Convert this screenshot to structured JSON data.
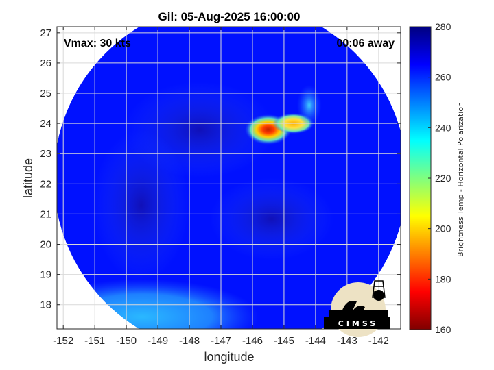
{
  "chart_data": {
    "type": "heatmap",
    "title": "Gil: 05-Aug-2025 16:00:00",
    "xlabel": "longitude",
    "ylabel": "latitude",
    "xlim": [
      -152.2,
      -141.3
    ],
    "ylim": [
      17.2,
      27.2
    ],
    "xticks": [
      -152,
      -151,
      -150,
      -149,
      -148,
      -147,
      -146,
      -145,
      -144,
      -143,
      -142
    ],
    "yticks": [
      18,
      19,
      20,
      21,
      22,
      23,
      24,
      25,
      26,
      27
    ],
    "grid": true,
    "annotations": {
      "vmax": "Vmax: 30 kts",
      "time_offset": "00:06 away"
    },
    "colorbar": {
      "label": "Brightness Temp - Horizontal Polarization",
      "range": [
        160,
        280
      ],
      "ticks": [
        160,
        180,
        200,
        220,
        240,
        260,
        280
      ],
      "colormap": "jet"
    },
    "swath": {
      "center_lon": -146.7,
      "center_lat": 22.2,
      "radius_deg": 5.6,
      "background_value": 263,
      "features": [
        {
          "kind": "warm-region",
          "lon": -149.5,
          "lat": 17.6,
          "value": 236
        },
        {
          "kind": "cold-core",
          "lon": -145.5,
          "lat": 23.8,
          "value": 185
        },
        {
          "kind": "cold-tail",
          "lon": -144.7,
          "lat": 24.0,
          "value": 205
        },
        {
          "kind": "cold-fringe",
          "lon": -144.2,
          "lat": 24.6,
          "value": 240
        }
      ]
    }
  },
  "logo": {
    "text": "CIMSS",
    "name": "cimss-logo"
  }
}
